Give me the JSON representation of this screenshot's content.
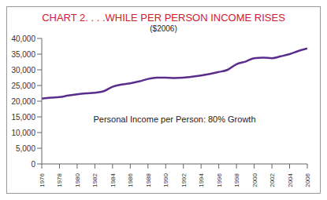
{
  "chart_data": {
    "type": "line",
    "title": "CHART 2. . . .WHILE PER PERSON INCOME RISES",
    "subtitle": "($2006)",
    "annotation": "Personal Income per Person: 80% Growth",
    "x": [
      1976,
      1977,
      1978,
      1979,
      1980,
      1981,
      1982,
      1983,
      1984,
      1985,
      1986,
      1987,
      1988,
      1989,
      1990,
      1991,
      1992,
      1993,
      1994,
      1995,
      1996,
      1997,
      1998,
      1999,
      2000,
      2001,
      2002,
      2003,
      2004,
      2005,
      2006
    ],
    "values": [
      20800,
      21100,
      21300,
      21800,
      22200,
      22500,
      22700,
      23200,
      24600,
      25300,
      25700,
      26300,
      27100,
      27500,
      27500,
      27400,
      27500,
      27800,
      28200,
      28700,
      29300,
      30000,
      31800,
      32600,
      33700,
      33900,
      33700,
      34300,
      35000,
      36000,
      36800
    ],
    "color": "#5a2d8c",
    "xlim": [
      1976,
      2006
    ],
    "xticks": [
      1976,
      1978,
      1980,
      1982,
      1984,
      1986,
      1988,
      1990,
      1992,
      1994,
      1996,
      1998,
      2000,
      2002,
      2004,
      2006
    ],
    "ylim": [
      0,
      40000
    ],
    "yticks": [
      0,
      {
        "value": 5000,
        "label": "5,000"
      },
      {
        "value": 10000,
        "label": "10,000"
      },
      {
        "value": 15000,
        "label": "15,000"
      },
      {
        "value": 20000,
        "label": "20,000"
      },
      {
        "value": 25000,
        "label": "25,000"
      },
      {
        "value": 30000,
        "label": "30,000"
      },
      {
        "value": 35000,
        "label": "35,000"
      },
      {
        "value": 40000,
        "label": "40,000"
      }
    ],
    "grid": false
  }
}
